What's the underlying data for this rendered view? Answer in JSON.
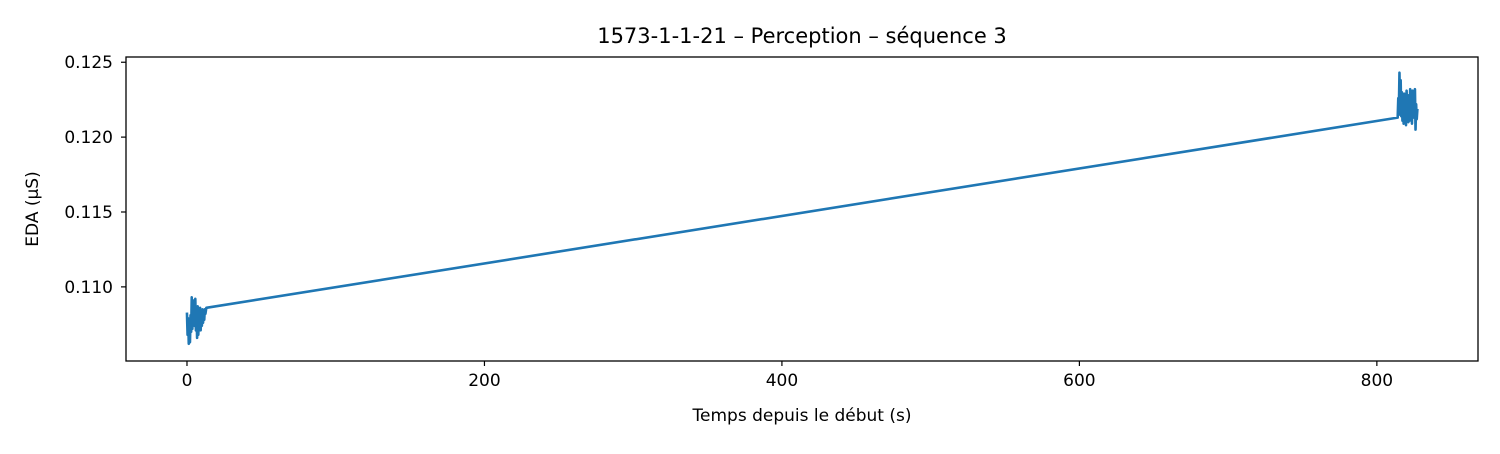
{
  "chart_data": {
    "type": "line",
    "title": "1573-1-1-21 – Perception – séquence 3",
    "xlabel": "Temps depuis le début (s)",
    "ylabel": "EDA (µS)",
    "xlim": [
      -41,
      868
    ],
    "ylim": [
      0.10505,
      0.12535
    ],
    "xticks": [
      0,
      200,
      400,
      600,
      800
    ],
    "xtick_labels": [
      "0",
      "200",
      "400",
      "600",
      "800"
    ],
    "yticks": [
      0.11,
      0.115,
      0.12,
      0.125
    ],
    "ytick_labels": [
      "0.110",
      "0.115",
      "0.120",
      "0.125"
    ],
    "grid": false,
    "legend": "none",
    "series": [
      {
        "color": "#1f77b4",
        "x": [
          0.0,
          0.4,
          0.8,
          1.2,
          1.6,
          2.0,
          2.4,
          2.8,
          3.2,
          3.6,
          4.0,
          4.4,
          4.8,
          5.2,
          5.6,
          6.0,
          6.4,
          6.8,
          7.2,
          7.6,
          8.0,
          8.4,
          8.8,
          9.2,
          9.6,
          10.0,
          10.4,
          10.8,
          11.2,
          11.6,
          12.0,
          12.4,
          13.0,
          814.0,
          814.4,
          814.8,
          815.2,
          815.6,
          816.0,
          816.4,
          816.8,
          817.2,
          817.6,
          818.0,
          818.4,
          818.8,
          819.2,
          819.6,
          820.0,
          820.4,
          820.8,
          821.2,
          821.6,
          822.0,
          822.4,
          822.8,
          823.2,
          823.6,
          824.0,
          824.4,
          824.8,
          825.2,
          825.6,
          826.0,
          826.4,
          826.8,
          827.2
        ],
        "y": [
          0.1082,
          0.1068,
          0.1079,
          0.1062,
          0.1074,
          0.1063,
          0.1081,
          0.107,
          0.1093,
          0.1072,
          0.1088,
          0.1076,
          0.1091,
          0.1074,
          0.1092,
          0.1071,
          0.1084,
          0.1066,
          0.1087,
          0.1068,
          0.1079,
          0.1073,
          0.1086,
          0.1071,
          0.1083,
          0.1074,
          0.1085,
          0.1076,
          0.1084,
          0.1078,
          0.1085,
          0.1082,
          0.1086,
          0.1213,
          0.1226,
          0.1219,
          0.1243,
          0.1215,
          0.1238,
          0.1214,
          0.123,
          0.1211,
          0.1226,
          0.1209,
          0.1229,
          0.1212,
          0.1224,
          0.1208,
          0.1231,
          0.1213,
          0.1223,
          0.121,
          0.1228,
          0.1211,
          0.1232,
          0.1214,
          0.1224,
          0.1209,
          0.1231,
          0.1213,
          0.1226,
          0.1215,
          0.1232,
          0.1205,
          0.1222,
          0.1212,
          0.1218
        ]
      }
    ]
  }
}
